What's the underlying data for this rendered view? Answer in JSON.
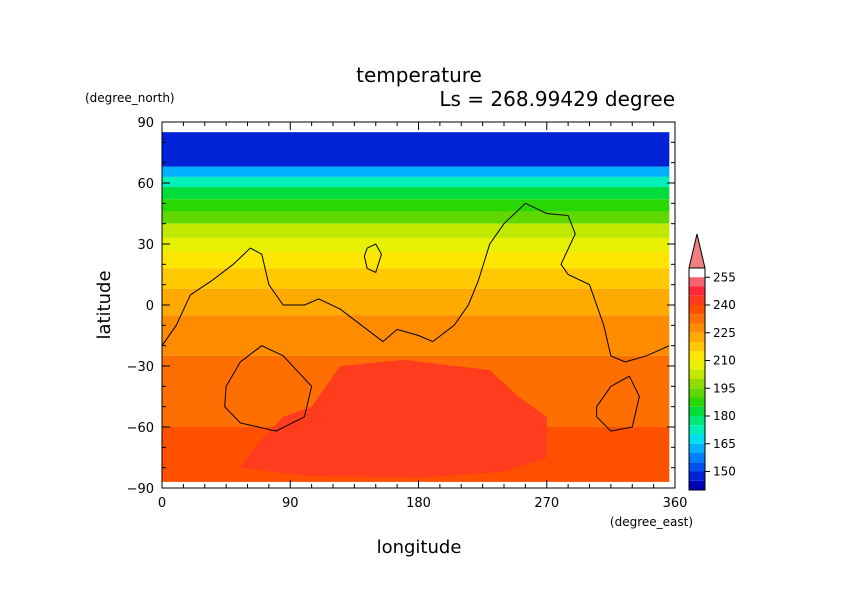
{
  "chart_data": {
    "type": "heatmap",
    "title": "temperature",
    "subtitle": "Ls = 268.99429 degree",
    "xlabel": "longitude",
    "ylabel": "latitude",
    "x_units": "(degree_east)",
    "y_units": "(degree_north)",
    "xlim": [
      0,
      360
    ],
    "ylim": [
      -90,
      90
    ],
    "x_ticks": [
      "0",
      "90",
      "180",
      "270",
      "360"
    ],
    "y_ticks": [
      "90",
      "60",
      "30",
      "0",
      "−30",
      "−60",
      "−90"
    ],
    "x_tick_values": [
      0,
      90,
      180,
      270,
      360
    ],
    "y_tick_values": [
      90,
      60,
      30,
      0,
      -30,
      -60,
      -90
    ],
    "data_lat_extent": [
      -87,
      85
    ],
    "data_lon_extent": [
      0,
      356
    ],
    "colorbar": {
      "levels": [
        140,
        145,
        150,
        155,
        160,
        165,
        170,
        175,
        180,
        185,
        190,
        195,
        200,
        205,
        210,
        215,
        220,
        225,
        230,
        235,
        240,
        245,
        250,
        255,
        260
      ],
      "labels": [
        "150",
        "165",
        "180",
        "195",
        "210",
        "225",
        "240",
        "255"
      ],
      "label_values": [
        150,
        165,
        180,
        195,
        210,
        225,
        240,
        255
      ],
      "colors": [
        "#0000b4",
        "#0022d6",
        "#0050f0",
        "#0080ff",
        "#00b0ff",
        "#00dcf0",
        "#00f0b8",
        "#00e878",
        "#00dc3c",
        "#28d800",
        "#60d800",
        "#90dc00",
        "#c0e800",
        "#e6f000",
        "#ffe600",
        "#ffc800",
        "#ffaa00",
        "#ff8c00",
        "#ff6e00",
        "#ff5000",
        "#ff3c1e",
        "#ff2838",
        "#f5646e"
      ],
      "overflow_color": "#f08080"
    },
    "temperature_bands_by_latitude": [
      {
        "lat_min": 68,
        "lat_max": 85,
        "temp": 145
      },
      {
        "lat_min": 63,
        "lat_max": 68,
        "temp": 160
      },
      {
        "lat_min": 58,
        "lat_max": 63,
        "temp": 172
      },
      {
        "lat_min": 52,
        "lat_max": 58,
        "temp": 180
      },
      {
        "lat_min": 46,
        "lat_max": 52,
        "temp": 187
      },
      {
        "lat_min": 40,
        "lat_max": 46,
        "temp": 193
      },
      {
        "lat_min": 33,
        "lat_max": 40,
        "temp": 200
      },
      {
        "lat_min": 26,
        "lat_max": 33,
        "temp": 207
      },
      {
        "lat_min": 18,
        "lat_max": 26,
        "temp": 213
      },
      {
        "lat_min": 8,
        "lat_max": 18,
        "temp": 218
      },
      {
        "lat_min": -5,
        "lat_max": 8,
        "temp": 223
      },
      {
        "lat_min": -25,
        "lat_max": -5,
        "temp": 228
      },
      {
        "lat_min": -60,
        "lat_max": -25,
        "temp": 232
      },
      {
        "lat_min": -87,
        "lat_max": -60,
        "temp": 236
      }
    ],
    "warm_region": {
      "temp": 240,
      "lon_lat": [
        [
          65,
          -70
        ],
        [
          85,
          -55
        ],
        [
          105,
          -50
        ],
        [
          125,
          -30
        ],
        [
          170,
          -27
        ],
        [
          230,
          -32
        ],
        [
          250,
          -45
        ],
        [
          270,
          -55
        ],
        [
          270,
          -75
        ],
        [
          240,
          -82
        ],
        [
          180,
          -85
        ],
        [
          100,
          -84
        ],
        [
          55,
          -80
        ]
      ]
    },
    "contours": [
      {
        "name": "main-contour",
        "closed": false,
        "lon_lat": [
          [
            0,
            -20
          ],
          [
            10,
            -10
          ],
          [
            20,
            5
          ],
          [
            35,
            12
          ],
          [
            50,
            20
          ],
          [
            62,
            28
          ],
          [
            70,
            25
          ],
          [
            75,
            10
          ],
          [
            85,
            0
          ],
          [
            100,
            0
          ],
          [
            110,
            3
          ],
          [
            125,
            -2
          ],
          [
            140,
            -10
          ],
          [
            155,
            -18
          ],
          [
            165,
            -12
          ],
          [
            180,
            -15
          ],
          [
            190,
            -18
          ],
          [
            205,
            -10
          ],
          [
            215,
            0
          ],
          [
            222,
            12
          ],
          [
            230,
            30
          ],
          [
            240,
            40
          ],
          [
            255,
            50
          ],
          [
            270,
            45
          ],
          [
            285,
            44
          ],
          [
            290,
            35
          ],
          [
            280,
            20
          ],
          [
            285,
            15
          ],
          [
            300,
            10
          ],
          [
            310,
            -10
          ],
          [
            315,
            -25
          ],
          [
            325,
            -28
          ],
          [
            340,
            -25
          ],
          [
            356,
            -20
          ]
        ]
      },
      {
        "name": "north-small-contour",
        "closed": true,
        "lon_lat": [
          [
            144,
            28
          ],
          [
            150,
            30
          ],
          [
            154,
            25
          ],
          [
            150,
            16
          ],
          [
            144,
            18
          ],
          [
            142,
            24
          ]
        ]
      },
      {
        "name": "southwest-contour",
        "closed": true,
        "lon_lat": [
          [
            45,
            -40
          ],
          [
            55,
            -28
          ],
          [
            70,
            -20
          ],
          [
            85,
            -25
          ],
          [
            105,
            -40
          ],
          [
            100,
            -55
          ],
          [
            80,
            -62
          ],
          [
            55,
            -58
          ],
          [
            44,
            -50
          ]
        ]
      },
      {
        "name": "southeast-contour",
        "closed": true,
        "lon_lat": [
          [
            305,
            -50
          ],
          [
            315,
            -40
          ],
          [
            328,
            -35
          ],
          [
            335,
            -45
          ],
          [
            330,
            -60
          ],
          [
            315,
            -62
          ],
          [
            305,
            -55
          ]
        ]
      }
    ]
  }
}
